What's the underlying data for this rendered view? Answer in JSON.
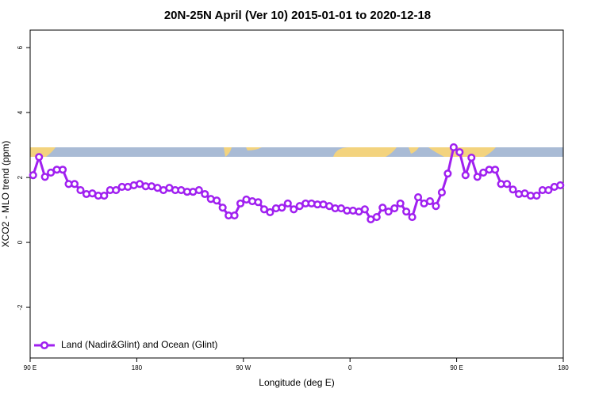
{
  "chart_data": {
    "type": "line",
    "title": "20N-25N April (Ver 10)   2015-01-01 to 2020-12-18",
    "x_label": "Longitude (deg E)",
    "y_label": "XCO2 - MLO trend (ppm)",
    "xlim": [
      90,
      540
    ],
    "ylim": [
      -3.56,
      6.54
    ],
    "xticks": [
      {
        "value": 90,
        "label": "90 E"
      },
      180,
      {
        "value": 270,
        "label": "90 W"
      },
      {
        "value": 360,
        "label": "0"
      },
      {
        "value": 450,
        "label": "90 E"
      },
      {
        "value": 540,
        "label": "180"
      }
    ],
    "yticks": [
      -2,
      0,
      2,
      4,
      6
    ],
    "legend": "bottom-left",
    "x": [
      92.5,
      97.5,
      102.5,
      107.5,
      112.5,
      117.5,
      122.5,
      127.5,
      132.5,
      137.5,
      142.5,
      147.5,
      152.5,
      157.5,
      162.5,
      167.5,
      172.5,
      177.5,
      182.5,
      187.5,
      192.5,
      197.5,
      202.5,
      207.5,
      212.5,
      217.5,
      222.5,
      227.5,
      232.5,
      237.5,
      242.5,
      247.5,
      252.5,
      257.5,
      262.5,
      267.5,
      272.5,
      277.5,
      282.5,
      287.5,
      292.5,
      297.5,
      302.5,
      307.5,
      312.5,
      317.5,
      322.5,
      327.5,
      332.5,
      337.5,
      342.5,
      347.5,
      352.5,
      357.5,
      362.5,
      367.5,
      372.5,
      377.5,
      382.5,
      387.5,
      392.5,
      397.5,
      402.5,
      407.5,
      412.5,
      417.5,
      422.5,
      427.5,
      432.5,
      437.5,
      442.5,
      447.5,
      452.5,
      457.5,
      462.5,
      467.5,
      472.5,
      477.5,
      482.5,
      487.5,
      492.5,
      497.5,
      502.5,
      507.5,
      512.5,
      517.5,
      522.5,
      527.5,
      532.5,
      537.5
    ],
    "series": [
      {
        "name": "Land (Nadir&Glint) and Ocean (Glint)",
        "color": "#a020f0",
        "values": [
          2.07,
          2.63,
          2.02,
          2.15,
          2.24,
          2.24,
          1.8,
          1.8,
          1.61,
          1.49,
          1.51,
          1.44,
          1.44,
          1.61,
          1.61,
          1.71,
          1.71,
          1.76,
          1.8,
          1.73,
          1.73,
          1.68,
          1.61,
          1.68,
          1.61,
          1.61,
          1.56,
          1.56,
          1.61,
          1.49,
          1.34,
          1.29,
          1.07,
          0.83,
          0.83,
          1.2,
          1.32,
          1.27,
          1.24,
          1.02,
          0.93,
          1.05,
          1.07,
          1.2,
          1.02,
          1.12,
          1.2,
          1.2,
          1.17,
          1.17,
          1.12,
          1.05,
          1.05,
          0.98,
          0.98,
          0.95,
          1.02,
          0.71,
          0.78,
          1.07,
          0.95,
          1.05,
          1.2,
          0.95,
          0.78,
          1.39,
          1.2,
          1.27,
          1.12,
          1.54,
          2.12,
          2.93,
          2.78,
          2.07,
          2.61,
          2.02,
          2.15,
          2.24,
          2.24,
          1.8,
          1.8,
          1.63,
          1.49,
          1.51,
          1.44,
          1.44,
          1.61,
          1.61,
          1.71,
          1.76
        ]
      }
    ]
  }
}
